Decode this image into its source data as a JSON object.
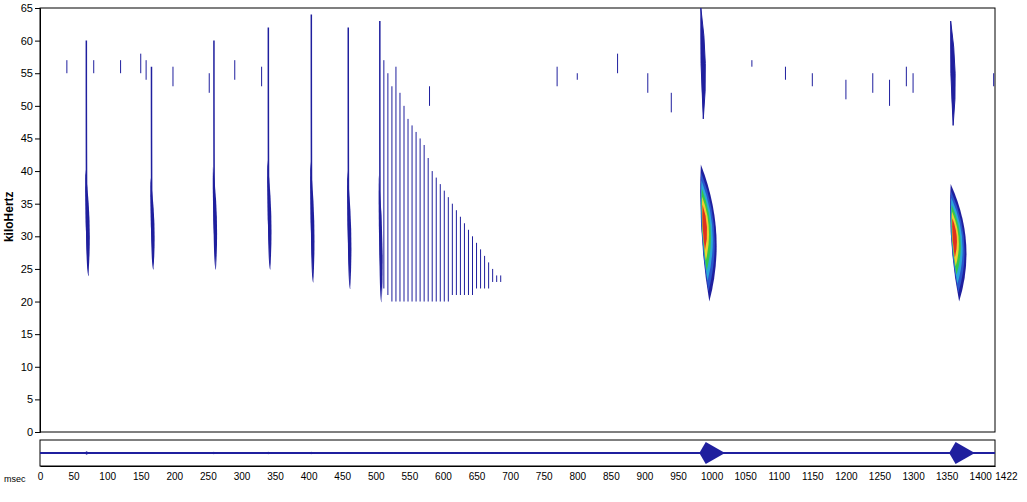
{
  "chart_data": {
    "type": "spectrogram",
    "y_label": "kiloHertz",
    "x_label": "msec",
    "color": "#1f1f9e",
    "xlim": [
      0,
      1422
    ],
    "xticks": [
      0,
      50,
      100,
      150,
      200,
      250,
      300,
      350,
      400,
      450,
      500,
      550,
      600,
      650,
      700,
      750,
      800,
      850,
      900,
      950,
      1000,
      1050,
      1100,
      1150,
      1200,
      1250,
      1300,
      1350,
      1400,
      1422
    ],
    "ylim": [
      0,
      65
    ],
    "yticks": [
      0,
      5,
      10,
      15,
      20,
      25,
      30,
      35,
      40,
      45,
      50,
      55,
      60,
      65
    ],
    "pulses": {
      "start": [
        69,
        166,
        259,
        340,
        404,
        459,
        506,
        984,
        1356
      ],
      "end": [
        75,
        171,
        264,
        345,
        409,
        464,
        510,
        1020,
        1392
      ],
      "f_high": [
        60,
        56,
        60,
        62,
        64,
        62,
        63,
        41,
        38
      ],
      "f_low": [
        24,
        25,
        25,
        25,
        23,
        22,
        20,
        20,
        20
      ],
      "harmonic_high": [
        null,
        null,
        null,
        null,
        null,
        null,
        null,
        65,
        63
      ],
      "harmonic_low": [
        null,
        null,
        null,
        null,
        null,
        null,
        null,
        48,
        47
      ],
      "amplitude": [
        0.15,
        0.1,
        0.12,
        0.12,
        0.12,
        0.1,
        0.08,
        1,
        1
      ]
    },
    "buzz": {
      "start": [
        512,
        518,
        524,
        530,
        536,
        542,
        548,
        554,
        560,
        566,
        572,
        578,
        584,
        590,
        596,
        602,
        608,
        614,
        620,
        626,
        632,
        638,
        644,
        650,
        656,
        662,
        668,
        674,
        680,
        686
      ],
      "f_high": [
        57,
        55,
        53,
        56,
        52,
        50,
        48,
        47,
        46,
        45,
        44,
        42,
        40,
        39,
        38,
        37,
        36,
        35,
        34,
        33,
        32,
        31,
        30,
        29,
        28,
        27,
        26,
        25,
        24,
        24
      ],
      "f_low": [
        22,
        21,
        20,
        20,
        20,
        20,
        20,
        20,
        20,
        20,
        20,
        20,
        20,
        20,
        20,
        20,
        20,
        21,
        21,
        21,
        21,
        21,
        21,
        22,
        22,
        22,
        22,
        23,
        23,
        23
      ],
      "amplitude": [
        0.1,
        0.09,
        0.09,
        0.08,
        0.08,
        0.08,
        0.07,
        0.07,
        0.07,
        0.07,
        0.06,
        0.06,
        0.06,
        0.06,
        0.06,
        0.05,
        0.05,
        0.05,
        0.05,
        0.05,
        0.04,
        0.04,
        0.04,
        0.04,
        0.04,
        0.03,
        0.03,
        0.03,
        0.03,
        0.03
      ]
    },
    "noise": {
      "x": [
        40,
        80,
        120,
        150,
        158,
        198,
        252,
        290,
        330,
        580,
        770,
        800,
        860,
        905,
        940,
        1060,
        1110,
        1150,
        1200,
        1240,
        1265,
        1290,
        1300,
        1420
      ],
      "f_low": [
        55,
        55,
        55,
        55,
        54,
        53,
        52,
        54,
        53,
        50,
        53,
        54,
        55,
        52,
        49,
        56,
        54,
        53,
        51,
        52,
        50,
        53,
        52,
        53
      ],
      "f_high": [
        57,
        57,
        57,
        58,
        57,
        56,
        55,
        57,
        56,
        53,
        56,
        55,
        58,
        55,
        52,
        57,
        56,
        55,
        54,
        55,
        54,
        56,
        55,
        55
      ]
    }
  }
}
